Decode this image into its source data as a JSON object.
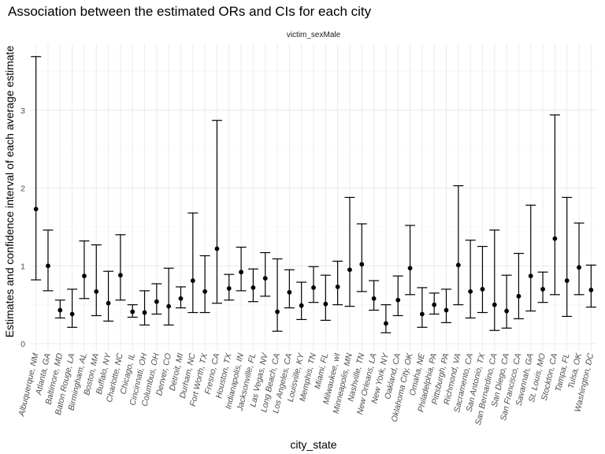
{
  "chart_data": {
    "type": "scatter",
    "title": "Association between the estimated ORs and CIs for each city",
    "facet_label": "victim_sexMale",
    "xlabel": "city_state",
    "ylabel": "Estimates and confidence interval of each average estimate",
    "ylim": [
      0,
      3.75
    ],
    "yticks": [
      "0",
      "1",
      "2",
      "3"
    ],
    "grid": true,
    "categories": [
      "Albuquerque, NM",
      "Atlanta, GA",
      "Baltimore, MD",
      "Baton Rouge, LA",
      "Birmingham, AL",
      "Boston, MA",
      "Buffalo, NY",
      "Charlotte, NC",
      "Chicago, IL",
      "Cincinnati, OH",
      "Columbus, OH",
      "Denver, CO",
      "Detroit, MI",
      "Durham, NC",
      "Fort Worth, TX",
      "Fresno, CA",
      "Houston, TX",
      "Indianapolis, IN",
      "Jacksonville, FL",
      "Las Vegas, NV",
      "Long Beach, CA",
      "Los Angeles, CA",
      "Louisville, KY",
      "Memphis, TN",
      "Miami, FL",
      "Milwaukee, wI",
      "Minneapolis, MN",
      "Nashville, TN",
      "New Orleans, LA",
      "New York, NY",
      "Oakland, CA",
      "Oklahoma City, OK",
      "Omaha, NE",
      "Philadelphia, PA",
      "Pittsburgh, PA",
      "Richmond, VA",
      "Sacramento, CA",
      "San Antonio, TX",
      "San Bernardino, CA",
      "San Diego, CA",
      "San Francisco, CA",
      "Savannah, GA",
      "St. Louis, MO",
      "Stockton, CA",
      "Tampa, FL",
      "Tulsa, OK",
      "Washington, DC"
    ],
    "estimate": [
      1.73,
      1.0,
      0.43,
      0.38,
      0.87,
      0.67,
      0.52,
      0.88,
      0.41,
      0.4,
      0.54,
      0.48,
      0.58,
      0.81,
      0.67,
      1.22,
      0.71,
      0.92,
      0.72,
      0.84,
      0.41,
      0.66,
      0.49,
      0.72,
      0.51,
      0.73,
      0.95,
      1.02,
      0.58,
      0.26,
      0.56,
      0.97,
      0.38,
      0.5,
      0.43,
      1.01,
      0.67,
      0.7,
      0.5,
      0.42,
      0.61,
      0.87,
      0.7,
      1.35,
      0.81,
      0.98,
      0.69
    ],
    "lower": [
      0.82,
      0.68,
      0.33,
      0.21,
      0.58,
      0.36,
      0.29,
      0.56,
      0.34,
      0.24,
      0.38,
      0.24,
      0.46,
      0.4,
      0.4,
      0.52,
      0.56,
      0.68,
      0.54,
      0.61,
      0.16,
      0.46,
      0.31,
      0.53,
      0.3,
      0.5,
      0.48,
      0.67,
      0.43,
      0.14,
      0.36,
      0.63,
      0.21,
      0.38,
      0.27,
      0.5,
      0.33,
      0.4,
      0.17,
      0.2,
      0.32,
      0.42,
      0.53,
      0.63,
      0.35,
      0.63,
      0.47
    ],
    "upper": [
      3.69,
      1.46,
      0.56,
      0.7,
      1.32,
      1.27,
      0.93,
      1.4,
      0.5,
      0.68,
      0.77,
      0.97,
      0.73,
      1.68,
      1.13,
      2.87,
      0.89,
      1.24,
      0.96,
      1.17,
      1.09,
      0.95,
      0.79,
      0.99,
      0.88,
      1.06,
      1.88,
      1.54,
      0.81,
      0.5,
      0.87,
      1.52,
      0.72,
      0.65,
      0.7,
      2.03,
      1.33,
      1.25,
      1.46,
      0.88,
      1.16,
      1.78,
      0.92,
      2.94,
      1.88,
      1.55,
      1.01
    ]
  }
}
